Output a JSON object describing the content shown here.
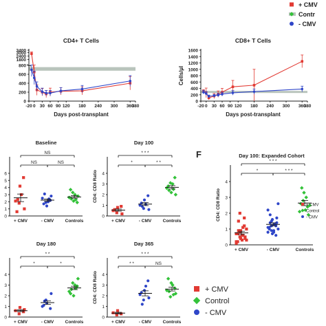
{
  "colors": {
    "pos_cmv": "#e23a33",
    "neg_cmv": "#2f46c8",
    "control": "#34c23a",
    "band": "#b9c4bc",
    "axis": "#222222"
  },
  "legend_top": {
    "items": [
      "+ CMV",
      "Contr",
      "- CMV"
    ]
  },
  "legend_bottom": {
    "items": [
      "+ CMV",
      "Control",
      "- CMV"
    ]
  },
  "panel_f_letter": "F",
  "chart_data": [
    {
      "id": "cd4",
      "type": "line",
      "title": "CD4+ T Cells",
      "xlabel": "Days post-transplant",
      "ylabel": "",
      "x_ticks": [
        "-20",
        "0",
        "30",
        "60",
        "90",
        "120",
        "180",
        "240",
        "300",
        "360",
        "380"
      ],
      "y_ticks": [
        "0",
        "200",
        "400",
        "600",
        "800",
        "1800",
        "2400",
        "3000",
        "3400"
      ],
      "control_band": [
        680,
        760
      ],
      "series": [
        {
          "key": "pos_cmv",
          "x": [
            -10,
            0,
            10,
            30,
            45,
            60,
            100,
            180,
            360
          ],
          "y": [
            2800,
            650,
            250,
            200,
            160,
            200,
            220,
            230,
            400
          ],
          "err": [
            300,
            200,
            120,
            80,
            80,
            90,
            80,
            90,
            150
          ]
        },
        {
          "key": "neg_cmv",
          "x": [
            -10,
            0,
            10,
            30,
            45,
            60,
            100,
            180,
            360
          ],
          "y": [
            700,
            520,
            330,
            210,
            180,
            180,
            230,
            270,
            450
          ],
          "err": [
            150,
            150,
            100,
            80,
            60,
            60,
            70,
            80,
            120
          ]
        }
      ]
    },
    {
      "id": "cd8",
      "type": "line",
      "title": "CD8+ T Cells",
      "xlabel": "Days post-transplant",
      "ylabel": "Cells/µl",
      "x_ticks": [
        "-20",
        "0",
        "30",
        "60",
        "90",
        "120",
        "180",
        "240",
        "300",
        "360",
        "380"
      ],
      "y_ticks": [
        "0",
        "200",
        "400",
        "600",
        "800",
        "1000",
        "1200",
        "1400",
        "1600"
      ],
      "control_band": [
        270,
        320
      ],
      "series": [
        {
          "key": "pos_cmv",
          "x": [
            -10,
            0,
            10,
            30,
            45,
            60,
            100,
            180,
            360
          ],
          "y": [
            300,
            260,
            100,
            160,
            220,
            280,
            450,
            500,
            1250
          ],
          "err": [
            60,
            150,
            60,
            80,
            100,
            120,
            200,
            500,
            200
          ]
        },
        {
          "key": "neg_cmv",
          "x": [
            -10,
            0,
            10,
            30,
            45,
            60,
            100,
            180,
            360
          ],
          "y": [
            280,
            240,
            150,
            170,
            190,
            220,
            260,
            300,
            380
          ],
          "err": [
            60,
            60,
            40,
            40,
            50,
            60,
            70,
            80,
            90
          ]
        }
      ]
    },
    {
      "id": "baseline",
      "type": "scatter",
      "title": "Baseline",
      "ylabel": "",
      "categories": [
        "+ CMV",
        "- CMV",
        "Controls"
      ],
      "sig": [
        [
          "NS",
          0,
          2
        ],
        [
          "NS",
          0,
          1
        ],
        [
          "NS",
          1,
          2
        ]
      ],
      "points": [
        [
          2.1,
          1.8,
          4.2,
          5.4,
          1.0,
          0.6,
          2.3,
          3.0
        ],
        [
          2.5,
          1.9,
          1.4,
          2.2,
          2.8,
          1.7,
          3.1,
          2.0,
          2.4
        ],
        [
          2.6,
          3.3,
          2.1,
          1.9,
          2.8,
          3.7,
          2.4,
          3.0,
          2.3
        ]
      ]
    },
    {
      "id": "day100",
      "type": "scatter",
      "title": "Day 100",
      "ylabel": "CD4: CD8 Ratio",
      "categories": [
        "+ CMV",
        "- CMV",
        "Controls"
      ],
      "sig": [
        [
          "* * *",
          0,
          2
        ],
        [
          "*",
          0,
          1
        ],
        [
          "* *",
          1,
          2
        ]
      ],
      "points": [
        [
          0.5,
          0.3,
          0.8,
          0.9,
          0.2,
          0.6
        ],
        [
          1.0,
          0.7,
          1.5,
          1.9,
          0.6,
          1.2,
          0.9,
          1.1
        ],
        [
          2.6,
          3.1,
          2.2,
          3.6,
          2.0,
          2.8,
          2.4,
          3.0,
          2.5
        ]
      ]
    },
    {
      "id": "dayF",
      "type": "scatter",
      "title": "Day 100: Expanded Cohort",
      "ylabel": "CD4: CD8 Ratio",
      "categories": [
        "+ CMV",
        "- CMV",
        "Controls"
      ],
      "sig": [
        [
          "* * *",
          0,
          2
        ],
        [
          "*",
          0,
          1
        ],
        [
          "* * *",
          1,
          2
        ]
      ],
      "points": [
        [
          0.2,
          0.5,
          0.9,
          1.2,
          0.4,
          0.7,
          1.5,
          0.3,
          0.6,
          1.0,
          0.1,
          0.8,
          0.4,
          1.7,
          0.5,
          0.2,
          0.9,
          0.6,
          1.1,
          0.3,
          0.7,
          2.0
        ],
        [
          0.8,
          1.2,
          1.6,
          0.6,
          1.4,
          1.1,
          1.9,
          0.9,
          1.3,
          1.0,
          2.2,
          1.5,
          0.7,
          1.2,
          1.7,
          1.0,
          1.4,
          0.8,
          1.3,
          2.6,
          1.1,
          0.9,
          1.6
        ],
        [
          2.1,
          2.8,
          3.3,
          2.4,
          1.9,
          2.6,
          3.6,
          2.2,
          3.0,
          2.5
        ]
      ]
    },
    {
      "id": "day180",
      "type": "scatter",
      "title": "Day 180",
      "ylabel": "",
      "categories": [
        "+ CMV",
        "- CMV",
        "Controls"
      ],
      "sig": [
        [
          "* *",
          0,
          2
        ],
        [
          "*",
          0,
          1
        ],
        [
          "*",
          1,
          2
        ]
      ],
      "points": [
        [
          0.6,
          0.3,
          0.9,
          0.5,
          0.7
        ],
        [
          1.0,
          1.6,
          1.3,
          0.8,
          2.2,
          1.1,
          1.5
        ],
        [
          2.4,
          3.2,
          2.0,
          2.9,
          3.6,
          2.2,
          2.6,
          3.0,
          2.7
        ]
      ]
    },
    {
      "id": "day365",
      "type": "scatter",
      "title": "Day 365",
      "ylabel": "CD4: CD8 Ratio",
      "categories": [
        "+ CMV",
        "- CMV",
        "Controls"
      ],
      "sig": [
        [
          "* * *",
          0,
          2
        ],
        [
          "* *",
          0,
          1
        ],
        [
          "NS",
          1,
          2
        ]
      ],
      "points": [
        [
          0.4,
          0.2,
          0.6,
          0.3
        ],
        [
          2.1,
          1.6,
          2.5,
          3.4,
          1.8,
          2.3,
          1.2,
          2.9
        ],
        [
          2.5,
          1.9,
          3.2,
          2.7,
          2.2,
          3.6,
          2.4,
          3.0,
          2.1
        ]
      ]
    }
  ]
}
